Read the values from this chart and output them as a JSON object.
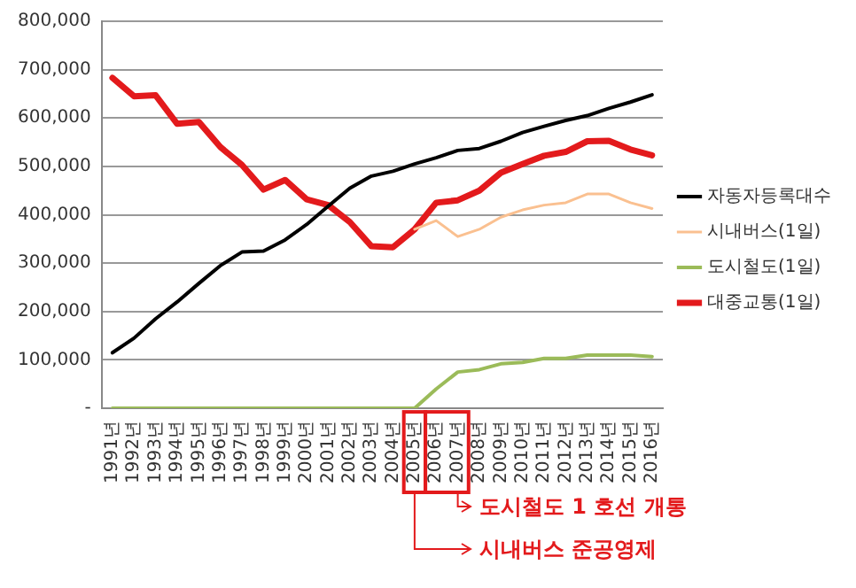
{
  "chart_data": {
    "type": "line",
    "categories": [
      "1991년",
      "1992년",
      "1993년",
      "1994년",
      "1995년",
      "1996년",
      "1997년",
      "1998년",
      "1999년",
      "2000년",
      "2001년",
      "2002년",
      "2003년",
      "2004년",
      "2005년",
      "2006년",
      "2007년",
      "2008년",
      "2009년",
      "2010년",
      "2011년",
      "2012년",
      "2013년",
      "2014년",
      "2015년",
      "2016년"
    ],
    "series": [
      {
        "name": "자동자등록대수",
        "color": "#000000",
        "values": [
          115000,
          145000,
          185000,
          220000,
          258000,
          295000,
          323000,
          325000,
          348000,
          380000,
          418000,
          455000,
          480000,
          490000,
          505000,
          518000,
          533000,
          537000,
          552000,
          570000,
          583000,
          595000,
          605000,
          620000,
          633000,
          648000
        ]
      },
      {
        "name": "시내버스(1일)",
        "color": "#fac090",
        "values": [
          null,
          null,
          null,
          null,
          null,
          null,
          null,
          null,
          null,
          null,
          null,
          null,
          null,
          null,
          370000,
          388000,
          355000,
          370000,
          395000,
          410000,
          420000,
          425000,
          443000,
          443000,
          425000,
          413000
        ]
      },
      {
        "name": "도시철도(1일)",
        "color": "#9bbb59",
        "values": [
          0,
          0,
          0,
          0,
          0,
          0,
          0,
          0,
          0,
          0,
          0,
          0,
          0,
          0,
          0,
          40000,
          75000,
          80000,
          92000,
          95000,
          103000,
          103000,
          110000,
          110000,
          110000,
          107000
        ]
      },
      {
        "name": "대중교통(1일)",
        "color": "#e31a1c",
        "values": [
          683000,
          645000,
          647000,
          588000,
          592000,
          540000,
          503000,
          452000,
          472000,
          432000,
          420000,
          385000,
          335000,
          333000,
          370000,
          425000,
          430000,
          450000,
          487000,
          505000,
          522000,
          530000,
          552000,
          553000,
          535000,
          523000
        ]
      }
    ],
    "ylim": [
      0,
      800000
    ],
    "yticks": [
      {
        "value": 0,
        "label": "-"
      },
      {
        "value": 100000,
        "label": "100,000"
      },
      {
        "value": 200000,
        "label": "200,000"
      },
      {
        "value": 300000,
        "label": "300,000"
      },
      {
        "value": 400000,
        "label": "400,000"
      },
      {
        "value": 500000,
        "label": "500,000"
      },
      {
        "value": 600000,
        "label": "600,000"
      },
      {
        "value": 700000,
        "label": "700,000"
      },
      {
        "value": 800000,
        "label": "800,000"
      }
    ],
    "grid": "y",
    "legend": "right",
    "marker": "none",
    "line_style": "solid",
    "annotations": [
      "시내버스 준공영제",
      "도시철도 1 호선 개통"
    ]
  }
}
